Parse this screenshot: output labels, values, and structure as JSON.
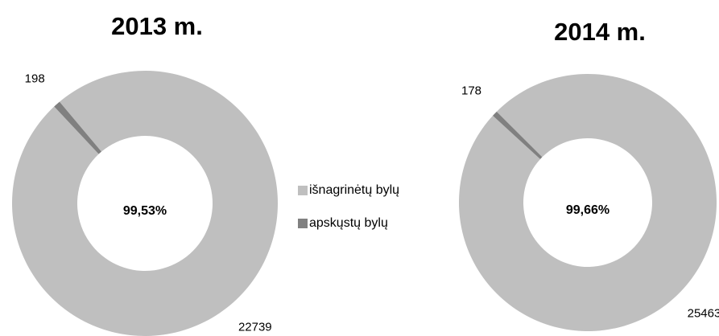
{
  "chart_data": [
    {
      "type": "donut",
      "title": "2013 m.",
      "values": [
        22739,
        198
      ],
      "center_label": "99,53%",
      "colors": [
        "#bfbfbf",
        "#808080"
      ],
      "first_slice_angle": 320
    },
    {
      "type": "donut",
      "title": "2014 m.",
      "values": [
        25463,
        178
      ],
      "center_label": "99,66%",
      "colors": [
        "#bfbfbf",
        "#808080"
      ],
      "first_slice_angle": 315
    }
  ],
  "legend": [
    {
      "name": "išnagrinėtų bylų",
      "color": "#bfbfbf"
    },
    {
      "name": "apskųstų bylų",
      "color": "#808080"
    }
  ]
}
